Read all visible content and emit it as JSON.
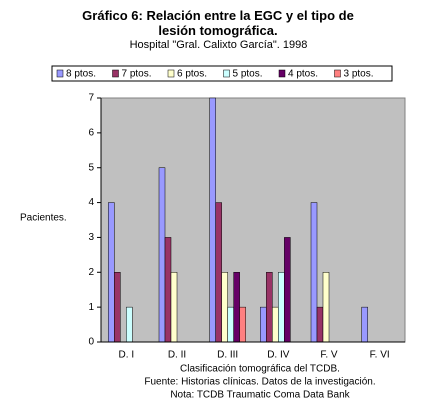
{
  "chart_data": {
    "type": "bar",
    "title": "Gráfico 6: Relación entre la EGC y el tipo de lesión tomográfica.",
    "subtitle": "Hospital \"Gral. Calixto García\". 1998",
    "y_label": "Pacientes.",
    "x_label": "Clasificación tomográfica del TCDB.",
    "notes": [
      "Fuente: Historias clínicas. Datos de la investigación.",
      "Nota: TCDB Traumatic Coma Data Bank"
    ],
    "categories": [
      "D. I",
      "D. II",
      "D. III",
      "D. IV",
      "F. V",
      "F. VI"
    ],
    "series": [
      {
        "name": "8 ptos.",
        "color": "#9999ff",
        "values": [
          4,
          5,
          7,
          1,
          4,
          1
        ]
      },
      {
        "name": "7 ptos.",
        "color": "#993366",
        "values": [
          2,
          3,
          4,
          2,
          1,
          0
        ]
      },
      {
        "name": "6 ptos.",
        "color": "#ffffcc",
        "values": [
          0,
          2,
          2,
          1,
          2,
          0
        ]
      },
      {
        "name": "5 ptos.",
        "color": "#ccffff",
        "values": [
          1,
          0,
          1,
          2,
          0,
          0
        ]
      },
      {
        "name": "4 ptos.",
        "color": "#660066",
        "values": [
          0,
          0,
          2,
          3,
          0,
          0
        ]
      },
      {
        "name": "3 ptos.",
        "color": "#ff8080",
        "values": [
          0,
          0,
          1,
          0,
          0,
          0
        ]
      }
    ],
    "ylim": [
      0,
      7
    ],
    "yticks": [
      0,
      1,
      2,
      3,
      4,
      5,
      6,
      7
    ],
    "plot_background": "#c0c0c0"
  }
}
